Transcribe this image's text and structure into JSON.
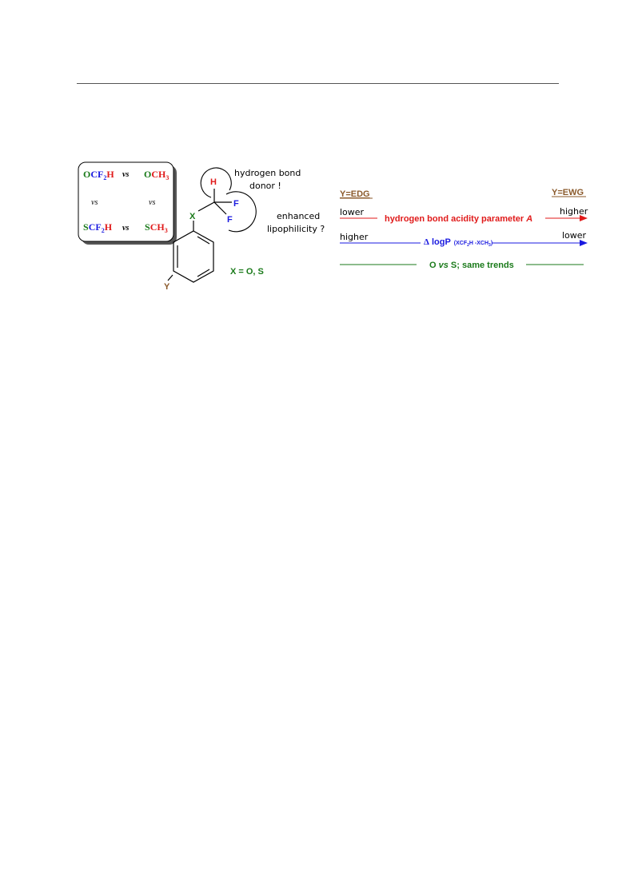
{
  "colors": {
    "green": "#1a7a1a",
    "blue": "#1a1ae0",
    "red": "#e01a1a",
    "brown": "#8b5a2b",
    "black": "#000000"
  },
  "box": {
    "ocf2h": {
      "a": "O",
      "b": "CF",
      "sub": "2",
      "c": "H"
    },
    "och3": {
      "a": "O",
      "b": "CH",
      "sub": "3"
    },
    "scf2h": {
      "a": "S",
      "b": "CF",
      "sub": "2",
      "c": "H"
    },
    "sch3": {
      "a": "S",
      "b": "CH",
      "sub": "3"
    },
    "vs": "vs"
  },
  "molecule": {
    "h_label": "H",
    "f1_label": "F",
    "f2_label": "F",
    "x_label": "X",
    "y_label": "Y",
    "x_def": "X = O, S"
  },
  "notes": {
    "hbd_line1": "hydrogen bond",
    "hbd_line2": "donor !",
    "lipo_line1": "enhanced",
    "lipo_line2": "lipophilicity ?"
  },
  "trends": {
    "y_edg": "Y=EDG",
    "y_ewg": "Y=EWG",
    "row1_left": "lower",
    "row1_right": "higher",
    "row1_text": "hydrogen bond acidity parameter ",
    "row1_italic": "A",
    "row2_left": "higher",
    "row2_right": "lower",
    "row2_delta": "Δ",
    "row2_text": " logP",
    "row2_paren": "(XCF",
    "row2_sub1": "2",
    "row2_mid": "H -XCH",
    "row2_sub2": "3",
    "row2_close": ")",
    "row3_o": "O ",
    "row3_vs": "vs",
    "row3_rest": " S; same trends"
  }
}
